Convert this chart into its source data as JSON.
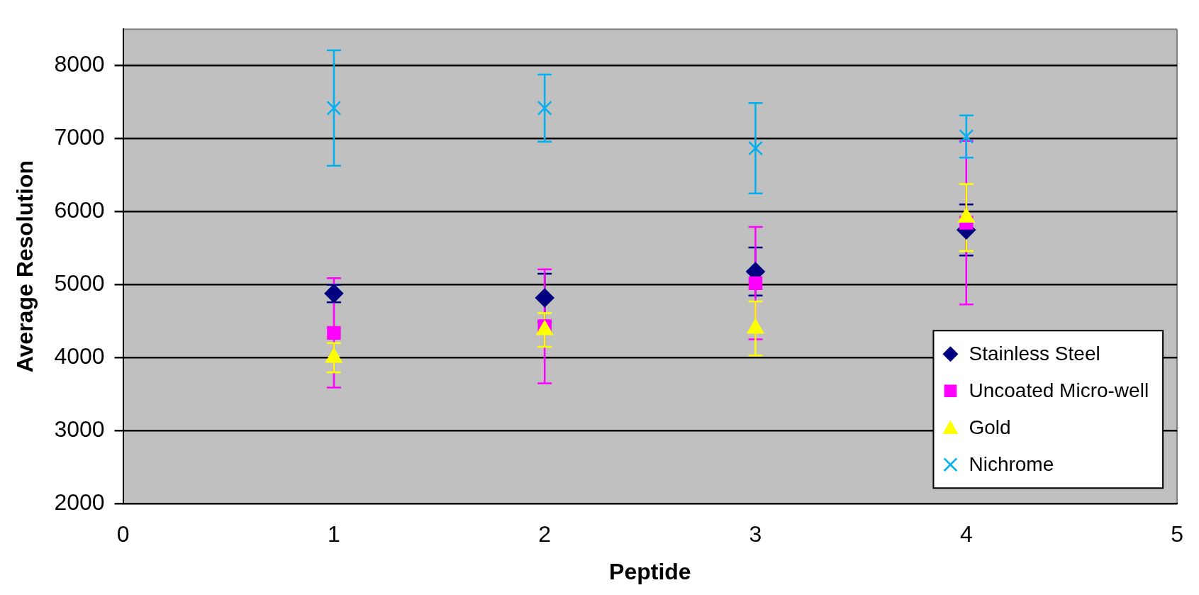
{
  "chart_data": {
    "type": "scatter",
    "xlabel": "Peptide",
    "ylabel": "Average Resolution",
    "x": [
      1,
      2,
      3,
      4
    ],
    "xlim": [
      0,
      5
    ],
    "xticks": [
      0,
      1,
      2,
      3,
      4,
      5
    ],
    "ylim": [
      2000,
      8500
    ],
    "yticks": [
      2000,
      3000,
      4000,
      5000,
      6000,
      7000,
      8000
    ],
    "grid": "y",
    "legend": "bottom right",
    "series": [
      {
        "name": "Stainless Steel",
        "color": "#000080",
        "marker": "diamond",
        "values": [
          4880,
          4820,
          5180,
          5750
        ],
        "errors": [
          120,
          330,
          330,
          350
        ]
      },
      {
        "name": "Uncoated Micro-well",
        "color": "#ff00ff",
        "marker": "square",
        "values": [
          4340,
          4430,
          5020,
          5850
        ],
        "errors": [
          750,
          780,
          770,
          1120
        ]
      },
      {
        "name": "Gold",
        "color": "#ffff00",
        "marker": "triangle",
        "values": [
          4000,
          4380,
          4400,
          5920
        ],
        "errors": [
          200,
          230,
          370,
          460
        ]
      },
      {
        "name": "Nichrome",
        "color": "#00b0f0",
        "marker": "cross",
        "values": [
          7420,
          7420,
          6870,
          7030
        ],
        "errors": [
          790,
          460,
          620,
          290
        ]
      }
    ]
  }
}
